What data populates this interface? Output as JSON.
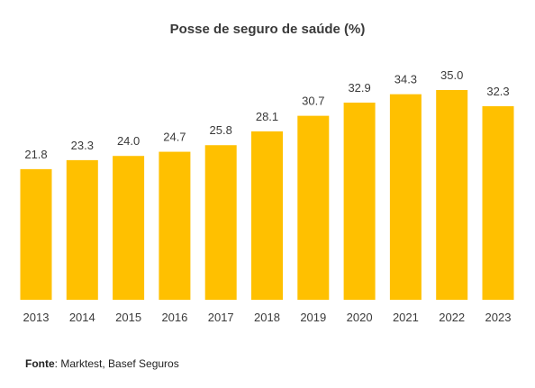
{
  "chart_data": {
    "type": "bar",
    "title": "Posse de seguro de saúde (%)",
    "categories": [
      "2013",
      "2014",
      "2015",
      "2016",
      "2017",
      "2018",
      "2019",
      "2020",
      "2021",
      "2022",
      "2023"
    ],
    "values": [
      21.8,
      23.3,
      24.0,
      24.7,
      25.8,
      28.1,
      30.7,
      32.9,
      34.3,
      35.0,
      32.3
    ],
    "value_labels": [
      "21.8",
      "23.3",
      "24.0",
      "24.7",
      "25.8",
      "28.1",
      "30.7",
      "32.9",
      "34.3",
      "35.0",
      "32.3"
    ],
    "xlabel": "",
    "ylabel": "",
    "ylim": [
      0,
      35
    ],
    "grid": false,
    "bar_color": "#FFC000"
  },
  "source": {
    "label": "Fonte",
    "text": ": Marktest, Basef Seguros"
  }
}
